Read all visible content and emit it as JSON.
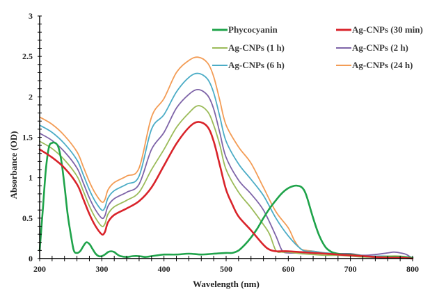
{
  "chart_data": {
    "type": "line",
    "title": "",
    "xlabel": "Wavelength (nm)",
    "ylabel": "Absorbance (OD)",
    "xlim": [
      200,
      800
    ],
    "ylim": [
      0,
      3
    ],
    "x_ticks": [
      "200",
      "300",
      "400",
      "500",
      "600",
      "700",
      "800"
    ],
    "y_ticks": [
      "0",
      "0.5",
      "1",
      "1.5",
      "2",
      "2.5",
      "3"
    ],
    "grid": false,
    "legend_position": "top-right",
    "series": [
      {
        "name": "Phycocyanin",
        "color": "#1fa34a",
        "x": [
          200,
          205,
          210,
          215,
          220,
          225,
          230,
          235,
          240,
          245,
          250,
          255,
          260,
          265,
          270,
          275,
          280,
          285,
          290,
          295,
          300,
          305,
          310,
          315,
          320,
          325,
          330,
          340,
          350,
          360,
          370,
          380,
          390,
          400,
          420,
          440,
          460,
          480,
          500,
          510,
          520,
          530,
          540,
          550,
          560,
          570,
          580,
          590,
          600,
          610,
          615,
          620,
          625,
          630,
          640,
          650,
          660,
          670,
          680,
          690,
          700,
          720,
          740,
          760,
          780,
          800
        ],
        "y": [
          0.1,
          0.6,
          1.1,
          1.38,
          1.43,
          1.43,
          1.38,
          1.2,
          0.9,
          0.55,
          0.3,
          0.1,
          0.07,
          0.09,
          0.15,
          0.2,
          0.18,
          0.12,
          0.06,
          0.03,
          0.03,
          0.05,
          0.08,
          0.09,
          0.08,
          0.05,
          0.03,
          0.02,
          0.03,
          0.03,
          0.02,
          0.03,
          0.04,
          0.05,
          0.05,
          0.06,
          0.05,
          0.06,
          0.07,
          0.07,
          0.1,
          0.17,
          0.26,
          0.37,
          0.5,
          0.62,
          0.72,
          0.81,
          0.87,
          0.9,
          0.9,
          0.89,
          0.85,
          0.76,
          0.5,
          0.28,
          0.14,
          0.08,
          0.06,
          0.05,
          0.05,
          0.03,
          0.02,
          0.02,
          0.02,
          0.01
        ]
      },
      {
        "name": "Ag-CNPs (30 min)",
        "color": "#d9232a",
        "x": [
          200,
          220,
          240,
          260,
          270,
          280,
          290,
          300,
          305,
          310,
          320,
          340,
          360,
          380,
          400,
          420,
          440,
          455,
          470,
          480,
          490,
          500,
          510,
          520,
          540,
          560,
          570,
          580,
          590,
          600,
          620,
          640,
          660,
          680,
          700,
          720,
          740,
          760,
          780,
          800
        ],
        "y": [
          1.35,
          1.25,
          1.12,
          0.92,
          0.74,
          0.55,
          0.4,
          0.3,
          0.33,
          0.45,
          0.54,
          0.62,
          0.71,
          0.88,
          1.15,
          1.42,
          1.62,
          1.69,
          1.63,
          1.45,
          1.15,
          0.85,
          0.67,
          0.52,
          0.35,
          0.17,
          0.11,
          0.09,
          0.09,
          0.09,
          0.08,
          0.07,
          0.06,
          0.05,
          0.04,
          0.03,
          0.02,
          0.01,
          0.01,
          0.0
        ]
      },
      {
        "name": "Ag-CNPs (1 h)",
        "color": "#9bbb59",
        "x": [
          200,
          220,
          240,
          260,
          270,
          280,
          290,
          300,
          305,
          310,
          320,
          340,
          360,
          380,
          400,
          420,
          440,
          455,
          470,
          480,
          490,
          500,
          520,
          540,
          560,
          570,
          580,
          590,
          600,
          620,
          640,
          660,
          680,
          700,
          720,
          740,
          760,
          780,
          800
        ],
        "y": [
          1.45,
          1.36,
          1.22,
          1.02,
          0.84,
          0.65,
          0.5,
          0.4,
          0.43,
          0.55,
          0.64,
          0.72,
          0.82,
          1.1,
          1.35,
          1.62,
          1.8,
          1.89,
          1.82,
          1.65,
          1.4,
          1.1,
          0.82,
          0.63,
          0.42,
          0.3,
          0.1,
          0.08,
          0.08,
          0.06,
          0.05,
          0.04,
          0.04,
          0.03,
          0.02,
          0.02,
          0.03,
          0.03,
          0.01
        ]
      },
      {
        "name": "Ag-CNPs (2 h)",
        "color": "#7e64a8",
        "x": [
          200,
          220,
          240,
          260,
          270,
          280,
          290,
          300,
          305,
          310,
          320,
          340,
          360,
          380,
          400,
          420,
          440,
          455,
          470,
          480,
          490,
          500,
          520,
          540,
          560,
          580,
          590,
          600,
          620,
          640,
          660,
          680,
          700,
          720,
          740,
          760,
          770,
          780,
          790,
          800
        ],
        "y": [
          1.55,
          1.46,
          1.32,
          1.12,
          0.94,
          0.75,
          0.6,
          0.5,
          0.53,
          0.65,
          0.74,
          0.82,
          0.92,
          1.35,
          1.56,
          1.86,
          2.03,
          2.09,
          2.02,
          1.85,
          1.55,
          1.25,
          0.97,
          0.8,
          0.6,
          0.28,
          0.1,
          0.07,
          0.07,
          0.07,
          0.06,
          0.06,
          0.06,
          0.04,
          0.05,
          0.07,
          0.08,
          0.07,
          0.05,
          0.0
        ]
      },
      {
        "name": "Ag-CNPs (6 h)",
        "color": "#4bacc6",
        "x": [
          200,
          220,
          240,
          260,
          270,
          280,
          290,
          300,
          305,
          310,
          320,
          340,
          360,
          380,
          400,
          420,
          440,
          455,
          470,
          480,
          490,
          500,
          520,
          540,
          560,
          580,
          600,
          620,
          630,
          640,
          660,
          680,
          700,
          720,
          740,
          760,
          780,
          800
        ],
        "y": [
          1.65,
          1.56,
          1.42,
          1.22,
          1.04,
          0.85,
          0.7,
          0.6,
          0.63,
          0.75,
          0.84,
          0.92,
          1.02,
          1.6,
          1.78,
          2.06,
          2.24,
          2.29,
          2.22,
          2.05,
          1.75,
          1.45,
          1.17,
          0.98,
          0.78,
          0.5,
          0.28,
          0.12,
          0.09,
          0.09,
          0.07,
          0.06,
          0.05,
          0.03,
          0.03,
          0.03,
          0.02,
          0.0
        ]
      },
      {
        "name": "Ag-CNPs (24 h)",
        "color": "#f39c55",
        "x": [
          200,
          220,
          240,
          260,
          270,
          280,
          290,
          300,
          305,
          310,
          320,
          340,
          360,
          380,
          400,
          420,
          440,
          455,
          470,
          480,
          490,
          500,
          520,
          540,
          560,
          580,
          600,
          610,
          620,
          630,
          640,
          660,
          680,
          700,
          720,
          740,
          760,
          780,
          800
        ],
        "y": [
          1.75,
          1.66,
          1.52,
          1.32,
          1.14,
          0.95,
          0.8,
          0.7,
          0.73,
          0.85,
          0.94,
          1.02,
          1.12,
          1.75,
          1.98,
          2.3,
          2.45,
          2.49,
          2.42,
          2.25,
          1.95,
          1.65,
          1.38,
          1.18,
          0.88,
          0.58,
          0.38,
          0.22,
          0.12,
          0.1,
          0.09,
          0.07,
          0.06,
          0.05,
          0.03,
          0.02,
          0.02,
          0.01,
          0.0
        ]
      }
    ]
  }
}
